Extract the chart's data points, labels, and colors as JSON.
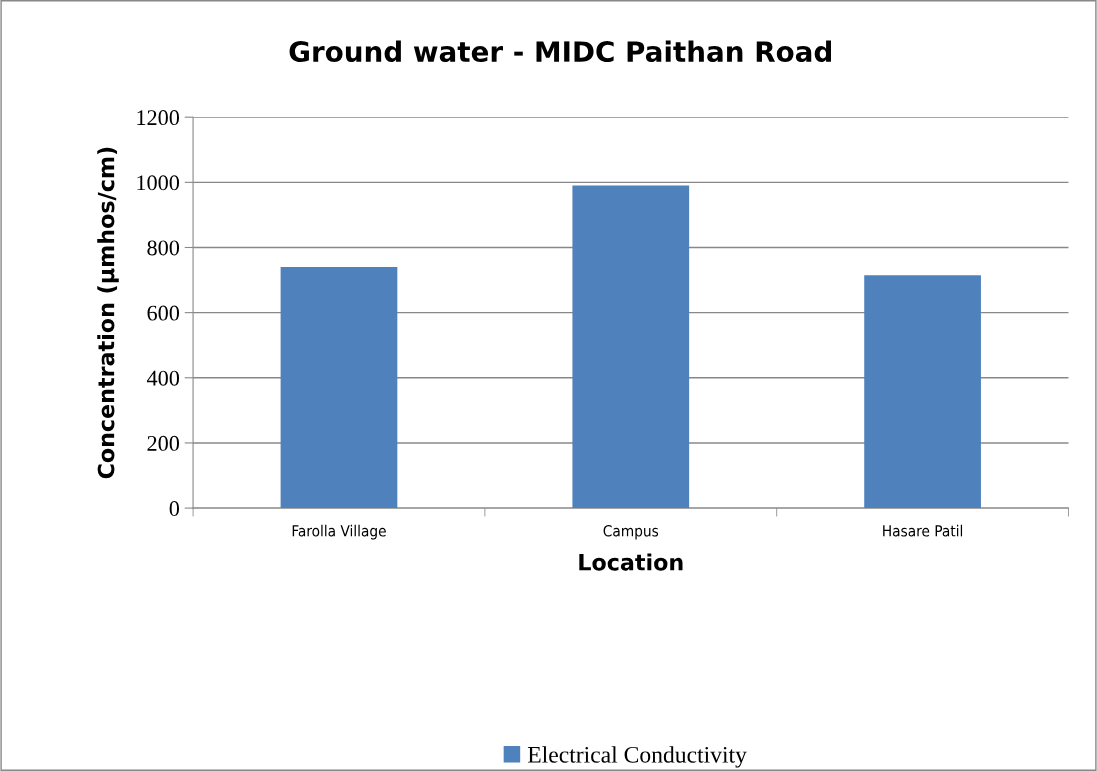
{
  "chart_data": {
    "type": "bar",
    "title": "Ground water - MIDC Paithan Road",
    "xlabel": "Location",
    "ylabel": "Concentration (µmhos/cm)",
    "categories": [
      "Farolla Village",
      "Campus",
      "Hasare Patil"
    ],
    "series": [
      {
        "name": "Electrical Conductivity",
        "color": "#4f81bd",
        "values": [
          740,
          990,
          715
        ]
      }
    ],
    "ylim": [
      0,
      1200
    ],
    "yticks": [
      0,
      200,
      400,
      600,
      800,
      1000,
      1200
    ],
    "grid": "y",
    "legend": "bottom"
  }
}
